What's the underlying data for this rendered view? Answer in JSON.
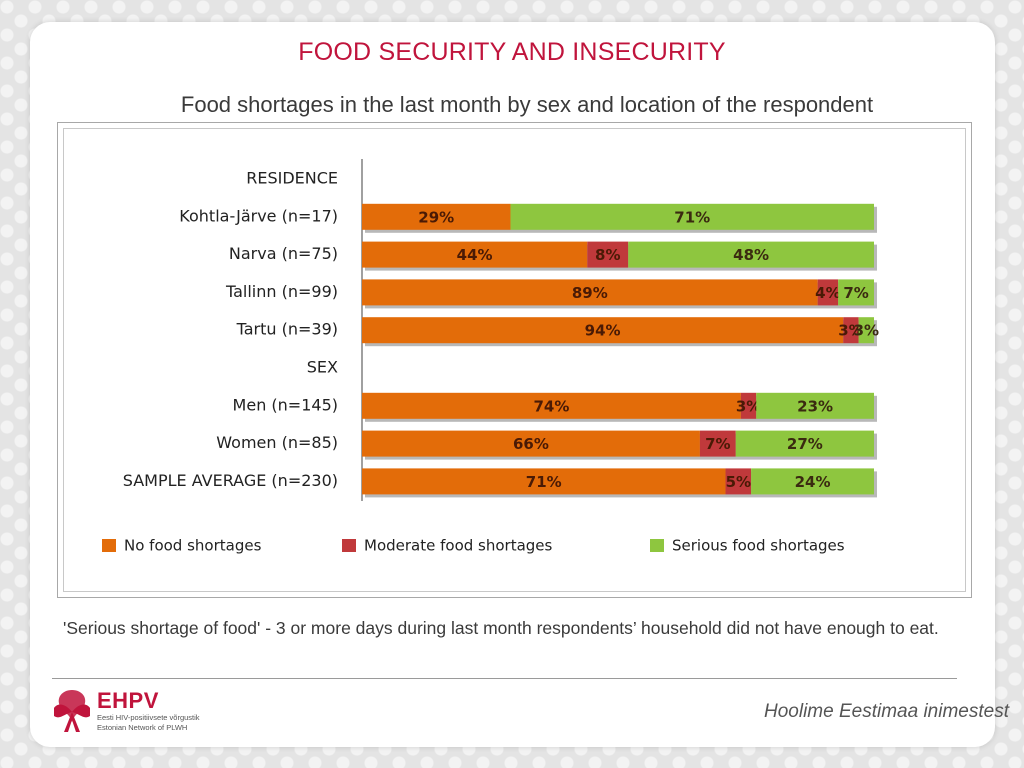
{
  "slide": {
    "title": "FOOD SECURITY AND INSECURITY",
    "subtitle": "Food shortages in the last month by sex and location of the respondent",
    "note": "'Serious shortage of food' - 3 or more days during last month respondents’ household did not have enough to eat.",
    "footer": {
      "logo_name": "EHPV",
      "logo_line1": "Eesti HIV-positiivsete võrgustik",
      "logo_line2": "Estonian Network of PLWH",
      "slogan": "Hoolime Eestimaa  inimestest"
    }
  },
  "colors": {
    "title": "#c0143c",
    "no_shortage": "#e36c09",
    "moderate": "#c0393b",
    "serious": "#8ec63f",
    "logo": "#c0143c"
  },
  "chart_data": {
    "type": "bar",
    "orientation": "horizontal",
    "stacked": true,
    "categories": [
      "RESIDENCE",
      "Kohtla-Järve (n=17)",
      "Narva (n=75)",
      "Tallinn (n=99)",
      "Tartu (n=39)",
      "SEX",
      "Men (n=145)",
      "Women (n=85)",
      "SAMPLE AVERAGE (n=230)"
    ],
    "series": [
      {
        "name": "No food shortages",
        "values": [
          null,
          29,
          44,
          89,
          94,
          null,
          74,
          66,
          71
        ],
        "labels": [
          "",
          "29%",
          "44%",
          "89%",
          "94%",
          "",
          "74%",
          "66%",
          "71%"
        ]
      },
      {
        "name": "Moderate food shortages",
        "values": [
          null,
          0,
          8,
          4,
          3,
          null,
          3,
          7,
          5
        ],
        "labels": [
          "",
          "",
          "8%",
          "4%",
          "3%",
          "",
          "3%",
          "7%",
          "5%"
        ]
      },
      {
        "name": "Serious food shortages",
        "values": [
          null,
          71,
          48,
          7,
          3,
          null,
          23,
          27,
          24
        ],
        "labels": [
          "",
          "71%",
          "48%",
          "7%",
          "3%",
          "",
          "23%",
          "27%",
          "24%"
        ]
      }
    ],
    "xlim": [
      0,
      100
    ],
    "legend": "bottom",
    "grid": false
  }
}
